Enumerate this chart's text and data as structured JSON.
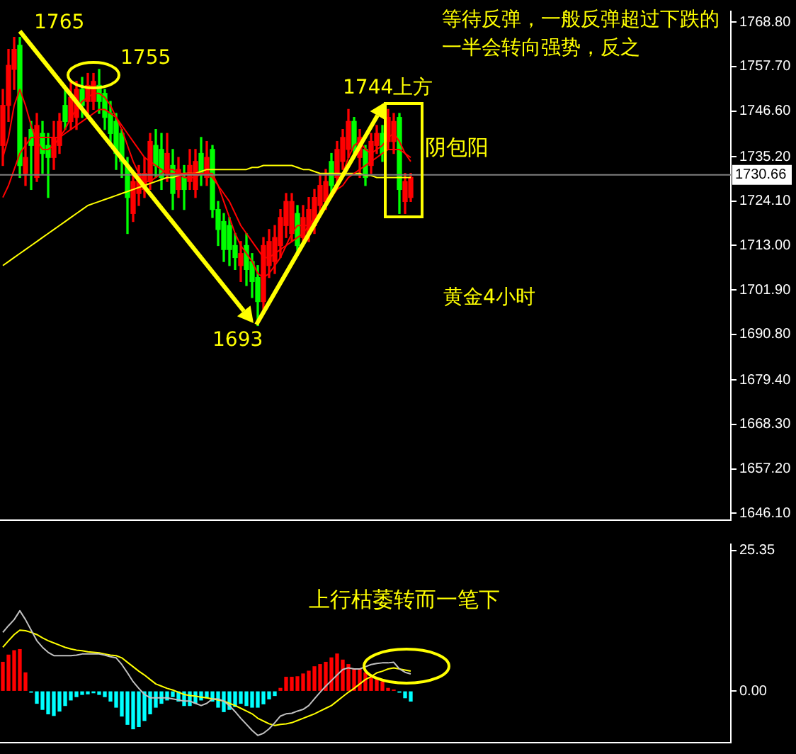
{
  "chart_data": [
    {
      "type": "candlestick",
      "categories": [
        null,
        null,
        null,
        null,
        null,
        null,
        null,
        null,
        null,
        null,
        null,
        null,
        null,
        null,
        null,
        null,
        null,
        null,
        null,
        null,
        null,
        null,
        null,
        null,
        null,
        null,
        null,
        null,
        null,
        null,
        null,
        null,
        null,
        null,
        null,
        null,
        null,
        null,
        null,
        null,
        null,
        null,
        null,
        null,
        null,
        null,
        null,
        null,
        null,
        null,
        null,
        null,
        null,
        null,
        null,
        null,
        null,
        null,
        null,
        null,
        null,
        null,
        null,
        null,
        null,
        null,
        null,
        null,
        null,
        null,
        null,
        null,
        null,
        null,
        null,
        null,
        null,
        null,
        null,
        null,
        null,
        null,
        null,
        null,
        null,
        null,
        null,
        null,
        null,
        null,
        null,
        null,
        null,
        null,
        null,
        null,
        null,
        null,
        null,
        null,
        null,
        null,
        null,
        null,
        null,
        null,
        null,
        null,
        null,
        null,
        null,
        null,
        null,
        null,
        null,
        null,
        null,
        null,
        null,
        null,
        null,
        null,
        null,
        null,
        null,
        null,
        null,
        null,
        null
      ],
      "ohlc": [
        [
          1738,
          1752,
          1733,
          1748
        ],
        [
          1748,
          1762,
          1744,
          1758
        ],
        [
          1757,
          1765,
          1752,
          1762
        ],
        [
          1763,
          1765,
          1730,
          1733
        ],
        [
          1731,
          1740,
          1728,
          1735
        ],
        [
          1742,
          1744,
          1727,
          1738
        ],
        [
          1730,
          1746,
          1729,
          1743
        ],
        [
          1741,
          1744,
          1731,
          1736
        ],
        [
          1738,
          1741,
          1725,
          1735
        ],
        [
          1735,
          1744,
          1732,
          1740
        ],
        [
          1738,
          1746,
          1736,
          1744
        ],
        [
          1748,
          1752,
          1742,
          1744
        ],
        [
          1744,
          1754,
          1742,
          1750
        ],
        [
          1745,
          1754,
          1742,
          1752
        ],
        [
          1752,
          1755,
          1745,
          1748
        ],
        [
          1749,
          1756,
          1746,
          1753
        ],
        [
          1749,
          1756,
          1747,
          1754
        ],
        [
          1753,
          1757,
          1746,
          1749
        ],
        [
          1751,
          1752,
          1742,
          1745
        ],
        [
          1746,
          1749,
          1738,
          1741
        ],
        [
          1744,
          1746,
          1732,
          1736
        ],
        [
          1741,
          1742,
          1730,
          1734
        ],
        [
          1733,
          1735,
          1716,
          1725
        ],
        [
          1721,
          1731,
          1719,
          1729
        ],
        [
          1726,
          1733,
          1723,
          1731
        ],
        [
          1727,
          1735,
          1725,
          1731
        ],
        [
          1729,
          1741,
          1727,
          1739
        ],
        [
          1738,
          1742,
          1730,
          1733
        ],
        [
          1737,
          1741,
          1727,
          1730
        ],
        [
          1731,
          1741,
          1729,
          1736
        ],
        [
          1733,
          1737,
          1722,
          1726
        ],
        [
          1727,
          1735,
          1725,
          1732
        ],
        [
          1730,
          1733,
          1722,
          1727
        ],
        [
          1729,
          1737,
          1727,
          1733
        ],
        [
          1727,
          1737,
          1725,
          1734
        ],
        [
          1736,
          1740,
          1728,
          1731
        ],
        [
          1730,
          1739,
          1728,
          1735
        ],
        [
          1737,
          1738,
          1720,
          1722
        ],
        [
          1722,
          1724,
          1713,
          1717
        ],
        [
          1719,
          1721,
          1709,
          1712
        ],
        [
          1718,
          1720,
          1708,
          1712
        ],
        [
          1713,
          1716,
          1707,
          1710
        ],
        [
          1708,
          1714,
          1704,
          1711
        ],
        [
          1713,
          1716,
          1703,
          1707
        ],
        [
          1709,
          1711,
          1700,
          1704
        ],
        [
          1705,
          1708,
          1693,
          1699
        ],
        [
          1699,
          1715,
          1697,
          1713
        ],
        [
          1708,
          1717,
          1705,
          1714
        ],
        [
          1709,
          1718,
          1706,
          1715
        ],
        [
          1713,
          1722,
          1710,
          1720
        ],
        [
          1718,
          1726,
          1715,
          1724
        ],
        [
          1716,
          1726,
          1714,
          1724
        ],
        [
          1721,
          1723,
          1711,
          1713
        ],
        [
          1715,
          1723,
          1713,
          1720
        ],
        [
          1716,
          1725,
          1714,
          1722
        ],
        [
          1718,
          1727,
          1716,
          1725
        ],
        [
          1723,
          1731,
          1721,
          1728
        ],
        [
          1724,
          1732,
          1722,
          1729
        ],
        [
          1734,
          1736,
          1726,
          1728
        ],
        [
          1730,
          1739,
          1728,
          1737
        ],
        [
          1734,
          1742,
          1732,
          1740
        ],
        [
          1737,
          1747,
          1735,
          1744
        ],
        [
          1744,
          1745,
          1735,
          1737
        ],
        [
          1735,
          1742,
          1730,
          1740
        ],
        [
          1737,
          1738,
          1728,
          1730
        ],
        [
          1733,
          1741,
          1731,
          1739
        ],
        [
          1738,
          1743,
          1736,
          1741
        ],
        [
          1741,
          1743,
          1734,
          1736
        ],
        [
          1739,
          1747,
          1737,
          1745
        ],
        [
          1739,
          1746,
          1736,
          1744
        ],
        [
          1745,
          1746,
          1721,
          1727
        ],
        [
          1724,
          1731,
          1721,
          1729
        ],
        [
          1725,
          1731,
          1724,
          1730
        ],
        null,
        null,
        null,
        null,
        null,
        null,
        null,
        null,
        null,
        null,
        null,
        null,
        null,
        null,
        null,
        null,
        null,
        null,
        null,
        null,
        null,
        null,
        null,
        null,
        null,
        null,
        null,
        null,
        null,
        null,
        null,
        null,
        null,
        null,
        null,
        null,
        null,
        null,
        null,
        null,
        null,
        null,
        null,
        null,
        null,
        null,
        null,
        null,
        null,
        null,
        null,
        null,
        null,
        null,
        null,
        null
      ],
      "colors": [
        "#ff0000",
        "#ff0000",
        "#ff0000",
        "#00ff00",
        "#ff0000",
        "#00ff00",
        "#ff0000",
        "#00ff00",
        "#00ff00",
        "#ff0000",
        "#ff0000",
        "#00ff00",
        "#ff0000",
        "#ff0000",
        "#00ff00",
        "#ff0000",
        "#ff0000",
        "#00ff00",
        "#00ff00",
        "#00ff00",
        "#00ff00",
        "#00ff00",
        "#00ff00",
        "#ff0000",
        "#ff0000",
        "#ff0000",
        "#ff0000",
        "#00ff00",
        "#00ff00",
        "#ff0000",
        "#00ff00",
        "#ff0000",
        "#00ff00",
        "#ff0000",
        "#ff0000",
        "#00ff00",
        "#ff0000",
        "#00ff00",
        "#00ff00",
        "#00ff00",
        "#00ff00",
        "#00ff00",
        "#ff0000",
        "#00ff00",
        "#00ff00",
        "#00ff00",
        "#ff0000",
        "#ff0000",
        "#ff0000",
        "#ff0000",
        "#ff0000",
        "#ff0000",
        "#00ff00",
        "#ff0000",
        "#ff0000",
        "#ff0000",
        "#ff0000",
        "#ff0000",
        "#00ff00",
        "#ff0000",
        "#ff0000",
        "#ff0000",
        "#00ff00",
        "#ff0000",
        "#00ff00",
        "#ff0000",
        "#ff0000",
        "#00ff00",
        "#ff0000",
        "#ff0000",
        "#00ff00",
        "#ff0000",
        "#ff0000",
        null,
        null,
        null,
        null,
        null,
        null,
        null,
        null,
        null,
        null,
        null,
        null,
        null,
        null,
        null,
        null,
        null,
        null,
        null,
        null,
        null,
        null,
        null,
        null,
        null,
        null,
        null,
        null,
        null,
        null,
        null,
        null,
        null,
        null,
        null,
        null,
        null,
        null,
        null,
        null,
        null,
        null,
        null,
        null,
        null,
        null,
        null,
        null,
        null,
        null,
        null,
        null,
        null,
        null,
        null,
        null
      ],
      "series": [
        {
          "type": "line",
          "color": "#ff0000",
          "values": [
            1735,
            1740,
            1748,
            1752,
            1748,
            1743,
            1739,
            1737,
            1737,
            1738,
            1740,
            1742,
            1745,
            1747,
            1749,
            1750,
            1751,
            1751,
            1750,
            1748,
            1745,
            1742,
            1738,
            1734,
            1731,
            1729,
            1729,
            1730,
            1731,
            1732,
            1732,
            1731,
            1730,
            1730,
            1730,
            1731,
            1731,
            1731,
            1728,
            1724,
            1720,
            1716,
            1713,
            1711,
            1709,
            1706,
            1705,
            1706,
            1708,
            1710,
            1713,
            1716,
            1718,
            1718,
            1718,
            1719,
            1721,
            1724,
            1726,
            1728,
            1731,
            1735,
            1738,
            1739,
            1737,
            1736,
            1737,
            1738,
            1740,
            1741,
            1739,
            1736,
            1734,
            null,
            null,
            null,
            null,
            null,
            null,
            null,
            null,
            null,
            null,
            null,
            null,
            null,
            null,
            null,
            null,
            null,
            null,
            null,
            null,
            null,
            null,
            null,
            null,
            null,
            null,
            null,
            null,
            null,
            null,
            null,
            null,
            null,
            null,
            null,
            null,
            null,
            null,
            null,
            null,
            null,
            null,
            null,
            null,
            null,
            null,
            null,
            null,
            null,
            null,
            null,
            null,
            null,
            null,
            null,
            null
          ]
        },
        {
          "type": "line",
          "color": "#ff0000",
          "values": [
            1725,
            1728,
            1732,
            1736,
            1738,
            1740,
            1740,
            1740,
            1740,
            1740,
            1740,
            1741,
            1742,
            1743,
            1744,
            1745,
            1746,
            1747,
            1747,
            1746,
            1745,
            1743,
            1741,
            1739,
            1737,
            1735,
            1734,
            1733,
            1732,
            1731,
            1731,
            1731,
            1731,
            1731,
            1731,
            1731,
            1731,
            1730,
            1728,
            1726,
            1724,
            1721,
            1718,
            1716,
            1714,
            1712,
            1710,
            1710,
            1711,
            1712,
            1713,
            1714,
            1715,
            1716,
            1718,
            1720,
            1721,
            1723,
            1725,
            1727,
            1728,
            1730,
            1731,
            1732,
            1733,
            1734,
            1735,
            1736,
            1737,
            1737,
            1737,
            1736,
            1735,
            null,
            null,
            null,
            null,
            null,
            null,
            null,
            null,
            null,
            null,
            null,
            null,
            null,
            null,
            null,
            null,
            null,
            null,
            null,
            null,
            null,
            null,
            null,
            null,
            null,
            null,
            null,
            null,
            null,
            null,
            null,
            null,
            null,
            null,
            null,
            null,
            null,
            null,
            null,
            null,
            null,
            null,
            null,
            null,
            null,
            null,
            null,
            null,
            null,
            null,
            null,
            null,
            null,
            null,
            null,
            null
          ]
        },
        {
          "type": "line",
          "color": "#ffff00",
          "values": [
            1708,
            1709,
            1710,
            1711,
            1712,
            1713,
            1714,
            1715,
            1716,
            1717,
            1718,
            1719,
            1720,
            1721,
            1722,
            1723,
            1723.5,
            1724,
            1724.5,
            1725,
            1725.5,
            1726,
            1726.5,
            1727,
            1727.5,
            1728,
            1728.5,
            1729,
            1729.5,
            1730,
            1730,
            1730.5,
            1731,
            1731,
            1731,
            1731.5,
            1732,
            1732,
            1732,
            1732,
            1732,
            1732,
            1732,
            1732,
            1732.5,
            1732.5,
            1733,
            1733,
            1733,
            1733,
            1733,
            1733,
            1732.5,
            1732,
            1732,
            1731.5,
            1731,
            1731,
            1731,
            1731,
            1731,
            1731,
            1731,
            1731,
            1730.5,
            1730.5,
            1730,
            1730,
            1730,
            1730,
            1730,
            1730,
            1730,
            null,
            null,
            null,
            null,
            null,
            null,
            null,
            null,
            null,
            null,
            null,
            null,
            null,
            null,
            null,
            null,
            null,
            null,
            null,
            null,
            null,
            null,
            null,
            null,
            null,
            null,
            null,
            null,
            null,
            null,
            null,
            null,
            null,
            null,
            null,
            null,
            null,
            null,
            null,
            null,
            null,
            null,
            null,
            null,
            null,
            null,
            null,
            null,
            null,
            null,
            null,
            null,
            null,
            null,
            null,
            null
          ]
        }
      ],
      "ylim": [
        1644.4,
        1771.5
      ],
      "yticks": [
        {
          "value": 1768.8,
          "label": "1768.80"
        },
        {
          "value": 1757.7,
          "label": "1757.70"
        },
        {
          "value": 1746.6,
          "label": "1746.60"
        },
        {
          "value": 1735.2,
          "label": "1735.20"
        },
        {
          "value": 1724.1,
          "label": "1724.10"
        },
        {
          "value": 1713,
          "label": "1713.00"
        },
        {
          "value": 1701.9,
          "label": "1701.90"
        },
        {
          "value": 1690.8,
          "label": "1690.80"
        },
        {
          "value": 1679.4,
          "label": "1679.40"
        },
        {
          "value": 1668.3,
          "label": "1668.30"
        },
        {
          "value": 1657.2,
          "label": "1657.20"
        },
        {
          "value": 1646.1,
          "label": "1646.10"
        }
      ],
      "ref_lines": [
        {
          "axis": "y",
          "value": 1730.66,
          "label": "1730.66",
          "color": "#808080"
        }
      ],
      "annotations": [
        "1765",
        "1755",
        "1744上方",
        "1693",
        "等待反弹，一般反弹超过下跌的一半会转向强势，反之",
        "阴包阳",
        "黄金4小时"
      ],
      "grid": false,
      "legend": false,
      "tick_labels": "y"
    },
    {
      "type": "bar",
      "categories": [
        null,
        null,
        null,
        null,
        null,
        null,
        null,
        null,
        null,
        null,
        null,
        null,
        null,
        null,
        null,
        null,
        null,
        null,
        null,
        null,
        null,
        null,
        null,
        null,
        null,
        null,
        null,
        null,
        null,
        null,
        null,
        null,
        null,
        null,
        null,
        null,
        null,
        null,
        null,
        null,
        null,
        null,
        null,
        null,
        null,
        null,
        null,
        null,
        null,
        null,
        null,
        null,
        null,
        null,
        null,
        null,
        null,
        null,
        null,
        null,
        null,
        null,
        null,
        null,
        null,
        null,
        null,
        null,
        null,
        null,
        null,
        null,
        null,
        null,
        null,
        null,
        null,
        null,
        null,
        null,
        null,
        null,
        null,
        null,
        null,
        null,
        null,
        null,
        null,
        null,
        null,
        null,
        null,
        null,
        null,
        null,
        null,
        null,
        null,
        null,
        null,
        null,
        null,
        null,
        null,
        null,
        null,
        null,
        null,
        null,
        null,
        null,
        null,
        null,
        null,
        null,
        null,
        null,
        null,
        null,
        null,
        null,
        null,
        null,
        null,
        null,
        null,
        null,
        null
      ],
      "series": [
        {
          "type": "bar",
          "values": [
            5.2,
            6.5,
            7.3,
            7.5,
            3.3,
            -0.2,
            -2.2,
            -3.3,
            -4.1,
            -4.4,
            -3.6,
            -2.6,
            -1.6,
            -1.0,
            -0.6,
            -0.5,
            -0.3,
            -0.6,
            -1.0,
            -1.8,
            -2.9,
            -4.5,
            -6.0,
            -6.8,
            -6.4,
            -5.3,
            -4.1,
            -2.9,
            -2.2,
            -1.6,
            -1.0,
            -1.8,
            -2.6,
            -2.6,
            -2.2,
            -1.6,
            -1.2,
            -1.8,
            -2.9,
            -3.7,
            -3.3,
            -2.8,
            -2.2,
            -2.6,
            -2.9,
            -2.9,
            -2.3,
            -1.4,
            -0.8,
            0.5,
            2.5,
            2.5,
            2.6,
            3.1,
            3.6,
            4.4,
            4.8,
            5.2,
            6.0,
            6.7,
            5.6,
            4.8,
            4.0,
            4.0,
            3.3,
            2.5,
            2.1,
            1.7,
            0.5,
            0.2,
            -0.2,
            -1.2,
            -1.8,
            null,
            null,
            null,
            null,
            null,
            null,
            null,
            null,
            null,
            null,
            null,
            null,
            null,
            null,
            null,
            null,
            null,
            null,
            null,
            null,
            null,
            null,
            null,
            null,
            null,
            null,
            null,
            null,
            null,
            null,
            null,
            null,
            null,
            null,
            null,
            null,
            null,
            null,
            null,
            null,
            null,
            null,
            null,
            null,
            null,
            null,
            null,
            null,
            null,
            null,
            null,
            null,
            null,
            null,
            null,
            null
          ],
          "colors": [
            "#ff0000",
            "#ff0000",
            "#ff0000",
            "#ff0000",
            "#ff0000",
            "#00ffff",
            "#00ffff",
            "#00ffff",
            "#00ffff",
            "#00ffff",
            "#00ffff",
            "#00ffff",
            "#00ffff",
            "#00ffff",
            "#00ffff",
            "#00ffff",
            "#00ffff",
            "#00ffff",
            "#00ffff",
            "#00ffff",
            "#00ffff",
            "#00ffff",
            "#00ffff",
            "#00ffff",
            "#00ffff",
            "#00ffff",
            "#00ffff",
            "#00ffff",
            "#00ffff",
            "#00ffff",
            "#00ffff",
            "#00ffff",
            "#00ffff",
            "#00ffff",
            "#00ffff",
            "#00ffff",
            "#00ffff",
            "#00ffff",
            "#00ffff",
            "#00ffff",
            "#00ffff",
            "#00ffff",
            "#00ffff",
            "#00ffff",
            "#00ffff",
            "#00ffff",
            "#00ffff",
            "#00ffff",
            "#00ffff",
            "#ff0000",
            "#ff0000",
            "#ff0000",
            "#ff0000",
            "#ff0000",
            "#ff0000",
            "#ff0000",
            "#ff0000",
            "#ff0000",
            "#ff0000",
            "#ff0000",
            "#ff0000",
            "#ff0000",
            "#ff0000",
            "#ff0000",
            "#ff0000",
            "#ff0000",
            "#ff0000",
            "#ff0000",
            "#ff0000",
            "#ff0000",
            "#00ffff",
            "#00ffff",
            "#00ffff",
            null,
            null,
            null,
            null,
            null,
            null,
            null,
            null,
            null,
            null,
            null,
            null,
            null,
            null,
            null,
            null,
            null,
            null,
            null,
            null,
            null,
            null,
            null,
            null,
            null,
            null,
            null,
            null,
            null,
            null,
            null,
            null,
            null,
            null,
            null,
            null,
            null,
            null,
            null,
            null,
            null,
            null,
            null,
            null,
            null,
            null,
            null,
            null,
            null,
            null,
            null,
            null,
            null,
            null,
            null,
            null
          ]
        },
        {
          "type": "line",
          "color": "#c0c0c0",
          "values": [
            10.6,
            11.8,
            12.9,
            14.5,
            12.9,
            11.0,
            9.1,
            7.9,
            7.0,
            6.4,
            6.4,
            6.4,
            6.4,
            6.5,
            6.7,
            6.7,
            6.7,
            6.7,
            6.5,
            6.2,
            6.0,
            4.8,
            3.3,
            1.7,
            0.5,
            -0.6,
            -1.2,
            -1.2,
            -1.2,
            -1.2,
            -1.4,
            -1.6,
            -1.8,
            -1.8,
            -2.2,
            -2.6,
            -2.2,
            -1.4,
            -1.4,
            -1.8,
            -2.6,
            -3.7,
            -4.9,
            -6.0,
            -7.1,
            -8.0,
            -7.6,
            -6.8,
            -5.7,
            -4.5,
            -4.1,
            -4.0,
            -3.6,
            -3.3,
            -2.6,
            -1.4,
            -0.2,
            0.9,
            1.9,
            2.9,
            3.9,
            4.2,
            4.0,
            4.0,
            4.4,
            4.8,
            5.0,
            5.1,
            5.1,
            5.2,
            4.0,
            3.4,
            3.1,
            null,
            null,
            null,
            null,
            null,
            null,
            null,
            null,
            null,
            null,
            null,
            null,
            null,
            null,
            null,
            null,
            null,
            null,
            null,
            null,
            null,
            null,
            null,
            null,
            null,
            null,
            null,
            null,
            null,
            null,
            null,
            null,
            null,
            null,
            null,
            null,
            null,
            null,
            null,
            null,
            null,
            null,
            null,
            null,
            null,
            null,
            null,
            null,
            null,
            null,
            null,
            null,
            null,
            null,
            null,
            null
          ]
        },
        {
          "type": "line",
          "color": "#ffff00",
          "values": [
            7.9,
            9.1,
            10.2,
            11.0,
            10.9,
            10.6,
            10.2,
            9.6,
            9.1,
            8.7,
            8.3,
            7.9,
            7.6,
            7.4,
            7.3,
            7.1,
            7.0,
            6.9,
            6.7,
            6.5,
            6.4,
            6.0,
            5.2,
            4.4,
            3.6,
            2.9,
            2.1,
            1.3,
            0.9,
            0.5,
            0.2,
            -0.2,
            -0.6,
            -0.8,
            -0.9,
            -1.1,
            -1.2,
            -1.4,
            -1.6,
            -1.8,
            -2.2,
            -2.6,
            -3.1,
            -3.6,
            -4.1,
            -4.9,
            -5.4,
            -5.9,
            -6.2,
            -6.0,
            -5.9,
            -5.7,
            -5.3,
            -4.9,
            -4.5,
            -4.1,
            -3.6,
            -3.1,
            -2.6,
            -1.8,
            -1.0,
            -0.2,
            0.5,
            1.3,
            2.1,
            2.6,
            3.3,
            3.6,
            4.0,
            4.2,
            4.0,
            3.8,
            3.6,
            null,
            null,
            null,
            null,
            null,
            null,
            null,
            null,
            null,
            null,
            null,
            null,
            null,
            null,
            null,
            null,
            null,
            null,
            null,
            null,
            null,
            null,
            null,
            null,
            null,
            null,
            null,
            null,
            null,
            null,
            null,
            null,
            null,
            null,
            null,
            null,
            null,
            null,
            null,
            null,
            null,
            null,
            null,
            null,
            null,
            null,
            null,
            null,
            null,
            null,
            null,
            null,
            null,
            null,
            null,
            null
          ]
        }
      ],
      "ylim": [
        -9.3,
        26.5
      ],
      "yticks": [
        25.35,
        {
          "value": 0,
          "label": "0.00"
        }
      ],
      "annotations": [
        "上行枯萎转而一笔下"
      ],
      "grid": false,
      "legend": false,
      "tick_labels": "y"
    }
  ]
}
